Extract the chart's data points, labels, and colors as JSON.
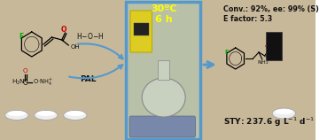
{
  "fig_width": 3.78,
  "fig_height": 1.58,
  "dpi": 100,
  "bg_left_color": "#c8b89a",
  "bg_center_color": "#b8c0a8",
  "bg_right_color": "#c8b89a",
  "center_border_color": "#5599cc",
  "temp_text": "30ºC",
  "time_text": "6 h",
  "temp_color": "#ffff00",
  "conv_text": "Conv.: 92%, ee: 99% (S)",
  "efactor_text": "E factor: 5.3",
  "text_color": "#111111",
  "arrow_color": "#5599cc",
  "red_color": "#cc0000",
  "green_color": "#00aa00"
}
